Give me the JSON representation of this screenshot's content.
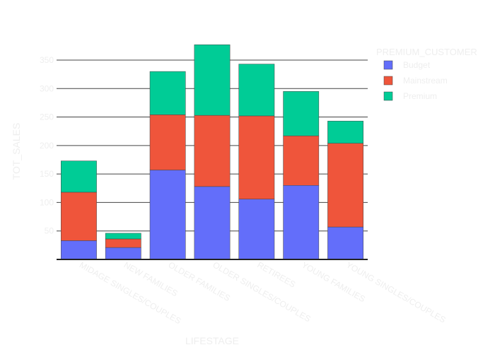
{
  "chart_data": {
    "type": "bar",
    "barmode": "stack",
    "categories": [
      "MIDAGE SINGLES/COUPLES",
      "NEW FAMILIES",
      "OLDER FAMILIES",
      "OLDER SINGLES/COUPLES",
      "RETIREES",
      "YOUNG FAMILIES",
      "YOUNG SINGLES/COUPLES"
    ],
    "series": [
      {
        "name": "Budget",
        "values": [
          33,
          21,
          157,
          128,
          106,
          130,
          57
        ]
      },
      {
        "name": "Mainstream",
        "values": [
          85,
          15,
          97,
          125,
          146,
          87,
          147
        ]
      },
      {
        "name": "Premium",
        "values": [
          55,
          10,
          76,
          124,
          91,
          78,
          39
        ]
      }
    ],
    "colors": {
      "Budget": "#636efa",
      "Mainstream": "#ef553b",
      "Premium": "#00cc96"
    },
    "xlabel": "LIFESTAGE",
    "ylabel": "TOT_SALES",
    "legend_title": "PREMIUM_CUSTOMER",
    "legend_placement": "top-right",
    "yticks": [
      50,
      100,
      150,
      200,
      250,
      300,
      350
    ],
    "ylim": [
      0,
      381
    ],
    "grid": true
  }
}
